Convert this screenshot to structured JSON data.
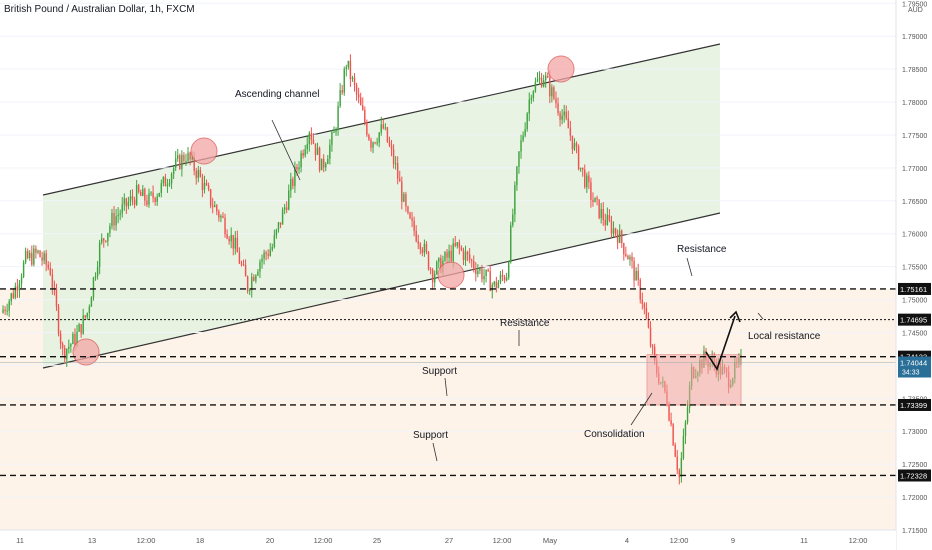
{
  "symbol_title": "British Pound / Australian Dollar, 1h, FXCM",
  "currency_label": "AUD",
  "colors": {
    "up": "#26a69a",
    "up_fill": "#3fa33f",
    "down": "#ef5350",
    "channel_fill": "#e4f1de",
    "zone_fill": "#fde9d6",
    "box_fill": "#f2a7a7",
    "line": "#222222",
    "last_price_bg": "#2a6f97"
  },
  "chart_data": {
    "type": "candlestick",
    "title": "British Pound / Australian Dollar, 1h, FXCM",
    "ylim": [
      1.715,
      1.7955
    ],
    "y_ticks": [
      "1.79500",
      "1.79000",
      "1.78500",
      "1.78000",
      "1.77500",
      "1.77000",
      "1.76500",
      "1.76000",
      "1.75500",
      "1.75000",
      "1.74500",
      "1.74000",
      "1.73500",
      "1.73000",
      "1.72500",
      "1.72000",
      "1.71500"
    ],
    "x_ticks": [
      "11",
      "13",
      "12:00",
      "18",
      "20",
      "12:00",
      "25",
      "27",
      "12:00",
      "May",
      "4",
      "12:00",
      "9",
      "11",
      "12:00"
    ],
    "price_path": [
      [
        "11",
        1.748
      ],
      [
        "11",
        1.751
      ],
      [
        "11",
        1.756
      ],
      [
        "11",
        1.757
      ],
      [
        "11",
        1.7545
      ],
      [
        "13",
        1.742
      ],
      [
        "13",
        1.744
      ],
      [
        "13",
        1.748
      ],
      [
        "13",
        1.758
      ],
      [
        "13",
        1.762
      ],
      [
        "12:00",
        1.764
      ],
      [
        "12:00",
        1.766
      ],
      [
        "12:00",
        1.765
      ],
      [
        "12:00",
        1.767
      ],
      [
        "18",
        1.77
      ],
      [
        "18",
        1.772
      ],
      [
        "18",
        1.769
      ],
      [
        "18",
        1.765
      ],
      [
        "18",
        1.762
      ],
      [
        "20",
        1.758
      ],
      [
        "20",
        1.752
      ],
      [
        "20",
        1.756
      ],
      [
        "20",
        1.758
      ],
      [
        "20",
        1.764
      ],
      [
        "12:00",
        1.77
      ],
      [
        "12:00",
        1.776
      ],
      [
        "12:00",
        1.77
      ],
      [
        "12:00",
        1.775
      ],
      [
        "25",
        1.786
      ],
      [
        "25",
        1.78
      ],
      [
        "25",
        1.774
      ],
      [
        "25",
        1.776
      ],
      [
        "25",
        1.77
      ],
      [
        "27",
        1.762
      ],
      [
        "27",
        1.759
      ],
      [
        "27",
        1.754
      ],
      [
        "27",
        1.756
      ],
      [
        "27",
        1.758
      ],
      [
        "12:00",
        1.756
      ],
      [
        "12:00",
        1.754
      ],
      [
        "12:00",
        1.752
      ],
      [
        "12:00",
        1.754
      ],
      [
        "May",
        1.772
      ],
      [
        "May",
        1.782
      ],
      [
        "May",
        1.784
      ],
      [
        "May",
        1.78
      ],
      [
        "May",
        1.776
      ],
      [
        "4",
        1.77
      ],
      [
        "4",
        1.765
      ],
      [
        "4",
        1.762
      ],
      [
        "4",
        1.76
      ],
      [
        "4",
        1.756
      ],
      [
        "4",
        1.75
      ],
      [
        "12:00",
        1.74
      ],
      [
        "12:00",
        1.735
      ],
      [
        "12:00",
        1.723
      ],
      [
        "12:00",
        1.739
      ],
      [
        "12:00",
        1.741
      ],
      [
        "9",
        1.74
      ],
      [
        "9",
        1.738
      ],
      [
        "9",
        1.7404
      ]
    ],
    "levels": [
      {
        "label": "1.75161",
        "value": 1.75161
      },
      {
        "label": "1.74695",
        "value": 1.74695
      },
      {
        "label": "1.74133",
        "value": 1.74133
      },
      {
        "label": "1.73399",
        "value": 1.73399
      },
      {
        "label": "1.72328",
        "value": 1.72328
      }
    ],
    "last_price": {
      "label": "1.74044",
      "countdown": "34:33",
      "value": 1.74044
    },
    "annotations": [
      "Ascending channel",
      "Resistance",
      "Resistance",
      "Local resistance",
      "Support",
      "Support",
      "Consolidation"
    ]
  }
}
